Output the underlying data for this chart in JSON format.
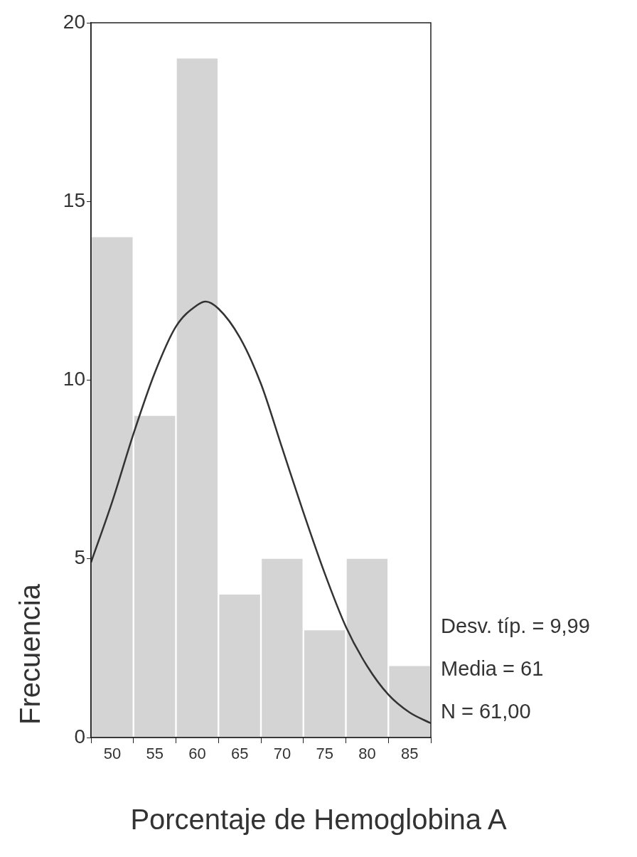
{
  "chart_data": {
    "type": "histogram",
    "xlabel": "Porcentaje de Hemoglobina A",
    "ylabel": "Frecuencia",
    "bins": [
      47.5,
      52.5,
      57.5,
      62.5,
      67.5,
      72.5,
      77.5,
      82.5,
      87.5
    ],
    "values": [
      14,
      9,
      19,
      4,
      5,
      3,
      5,
      2
    ],
    "color": "#d4d4d4",
    "series": [
      {
        "type": "line",
        "color": "#333333",
        "x": [
          47.5,
          50,
          52.5,
          55,
          57.5,
          60,
          61,
          62.5,
          65,
          67.5,
          70,
          72.5,
          75,
          77.5,
          80,
          82.5,
          85,
          87.5
        ],
        "values": [
          4.9,
          6.6,
          8.5,
          10.2,
          11.5,
          12.1,
          12.2,
          12.0,
          11.2,
          9.9,
          8.1,
          6.3,
          4.6,
          3.1,
          2.0,
          1.2,
          0.7,
          0.4
        ]
      }
    ],
    "xlim": [
      47.5,
      87.5
    ],
    "xticks": [
      50,
      55,
      60,
      65,
      70,
      75,
      80,
      85
    ],
    "ylim": [
      0,
      20
    ],
    "yticks": [
      0,
      5,
      10,
      15,
      20
    ],
    "grid": false,
    "legend": false,
    "marker": "none",
    "annotations": [
      "Desv. típ. = 9,99",
      "Media = 61",
      "N = 61,00"
    ]
  }
}
